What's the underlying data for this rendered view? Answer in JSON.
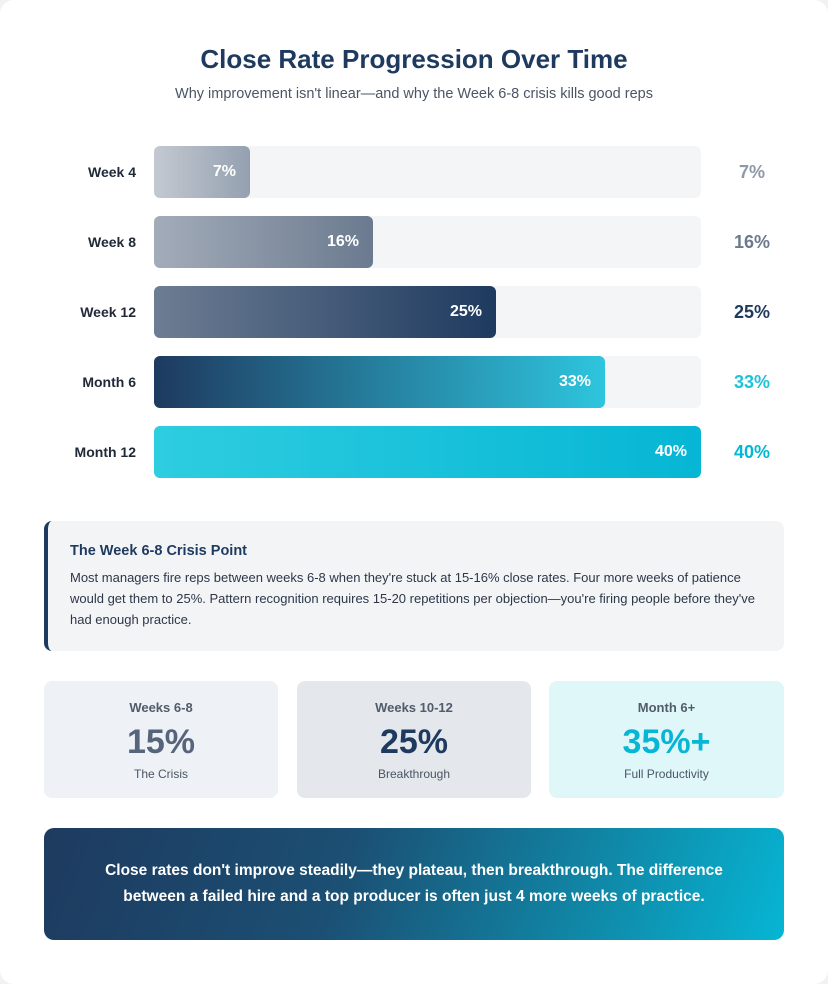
{
  "title": "Close Rate Progression Over Time",
  "subtitle": "Why improvement isn't linear—and why the Week 6-8 crisis kills good reps",
  "chart_data": {
    "type": "bar",
    "orientation": "horizontal",
    "title": "Close Rate Progression Over Time",
    "subtitle": "Why improvement isn't linear—and why the Week 6-8 crisis kills good reps",
    "categories": [
      "Week 4",
      "Week 8",
      "Week 12",
      "Month 6",
      "Month 12"
    ],
    "values": [
      7,
      16,
      25,
      33,
      40
    ],
    "value_labels": [
      "7%",
      "16%",
      "25%",
      "33%",
      "40%"
    ],
    "xlim": [
      0,
      40
    ],
    "grid": false,
    "bar_gradients": [
      [
        "#c4c9d1",
        "#94a0b0"
      ],
      [
        "#a3acb9",
        "#6b7a8f"
      ],
      [
        "#6d7d93",
        "#1e3a5f"
      ],
      [
        "#1e3a5f",
        "#2ec5de"
      ],
      [
        "#2ecde0",
        "#06b6d4"
      ]
    ],
    "value_colors": [
      "#8e98a6",
      "#6b7a8f",
      "#1e3a5f",
      "#22c1da",
      "#06b6d4"
    ]
  },
  "callout": {
    "title": "The Week 6-8 Crisis Point",
    "body": "Most managers fire reps between weeks 6-8 when they're stuck at 15-16% close rates. Four more weeks of patience would get them to 25%. Pattern recognition requires 15-20 repetitions per objection—you're firing people before they've had enough practice."
  },
  "stats": [
    {
      "label": "Weeks 6-8",
      "value": "15%",
      "sub": "The Crisis",
      "bg": "#eef1f5",
      "color": "#56657b"
    },
    {
      "label": "Weeks 10-12",
      "value": "25%",
      "sub": "Breakthrough",
      "bg": "#e4e7ec",
      "color": "#1e3a5f"
    },
    {
      "label": "Month 6+",
      "value": "35%+",
      "sub": "Full Productivity",
      "bg": "#e0f7fa",
      "color": "#06b6d4"
    }
  ],
  "banner": "Close rates don't improve steadily—they plateau, then breakthrough. The difference between a failed hire and a top producer is often just 4 more weeks of practice."
}
